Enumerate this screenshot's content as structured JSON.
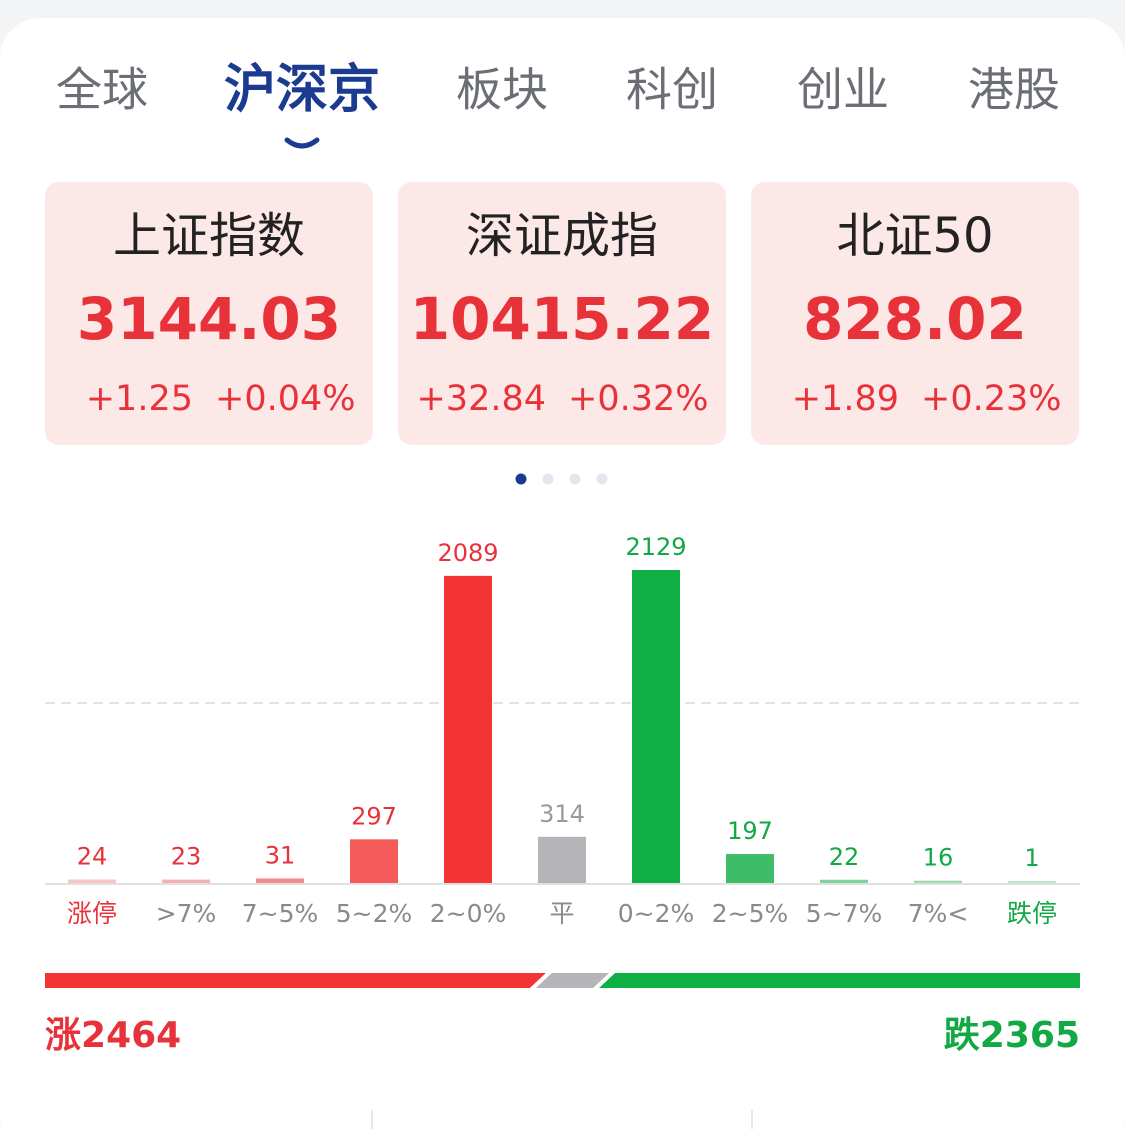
{
  "tabs": [
    "全球",
    "沪深京",
    "板块",
    "科创",
    "创业",
    "港股"
  ],
  "active_tab": 1,
  "indices": [
    {
      "name": "上证指数",
      "value": "3144.03",
      "change": "+1.25",
      "percent": "+0.04%"
    },
    {
      "name": "深证成指",
      "value": "10415.22",
      "change": "+32.84",
      "percent": "+0.32%"
    },
    {
      "name": "北证50",
      "value": "828.02",
      "change": "+1.89",
      "percent": "+0.23%"
    }
  ],
  "chart_data": {
    "type": "bar",
    "categories": [
      "涨停",
      ">7%",
      "7~5%",
      "5~2%",
      "2~0%",
      "平",
      "0~2%",
      "2~5%",
      "5~7%",
      "7%<",
      "跌停"
    ],
    "values": [
      24,
      23,
      31,
      297,
      2089,
      314,
      2129,
      197,
      22,
      16,
      1
    ],
    "colors": [
      "#f7c4c4",
      "#f5b0b0",
      "#f48c8c",
      "#f65b5b",
      "#f23434",
      "#b5b5b9",
      "#0fb043",
      "#3dbd67",
      "#7fd39a",
      "#9bdcb0",
      "#b8e6c6"
    ],
    "label_colors": [
      "#e8323a",
      "#e8323a",
      "#e8323a",
      "#e8323a",
      "#e8323a",
      "#9a9a9e",
      "#12a843",
      "#12a843",
      "#12a843",
      "#12a843",
      "#12a843"
    ],
    "category_colors": [
      "#e8323a",
      "#8a8a8e",
      "#8a8a8e",
      "#8a8a8e",
      "#8a8a8e",
      "#8a8a8e",
      "#8a8a8e",
      "#8a8a8e",
      "#8a8a8e",
      "#8a8a8e",
      "#12a843"
    ]
  },
  "summary": {
    "rise_label": "涨",
    "rise": 2464,
    "fall_label": "跌",
    "fall": 2365
  }
}
